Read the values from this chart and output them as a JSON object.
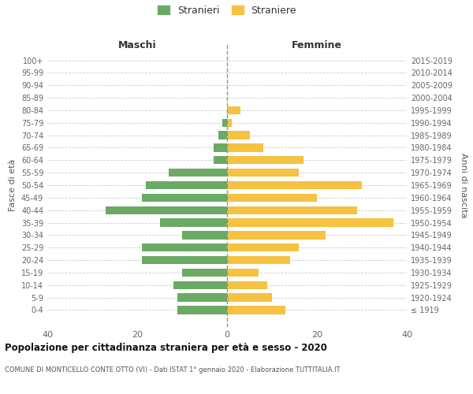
{
  "age_groups": [
    "100+",
    "95-99",
    "90-94",
    "85-89",
    "80-84",
    "75-79",
    "70-74",
    "65-69",
    "60-64",
    "55-59",
    "50-54",
    "45-49",
    "40-44",
    "35-39",
    "30-34",
    "25-29",
    "20-24",
    "15-19",
    "10-14",
    "5-9",
    "0-4"
  ],
  "birth_years": [
    "≤ 1919",
    "1920-1924",
    "1925-1929",
    "1930-1934",
    "1935-1939",
    "1940-1944",
    "1945-1949",
    "1950-1954",
    "1955-1959",
    "1960-1964",
    "1965-1969",
    "1970-1974",
    "1975-1979",
    "1980-1984",
    "1985-1989",
    "1990-1994",
    "1995-1999",
    "2000-2004",
    "2005-2009",
    "2010-2014",
    "2015-2019"
  ],
  "maschi": [
    0,
    0,
    0,
    0,
    0,
    1,
    2,
    3,
    3,
    13,
    18,
    19,
    27,
    15,
    10,
    19,
    19,
    10,
    12,
    11,
    11
  ],
  "femmine": [
    0,
    0,
    0,
    0,
    3,
    1,
    5,
    8,
    17,
    16,
    30,
    20,
    29,
    37,
    22,
    16,
    14,
    7,
    9,
    10,
    13
  ],
  "male_color": "#6aaa64",
  "female_color": "#f5c242",
  "title": "Popolazione per cittadinanza straniera per età e sesso - 2020",
  "subtitle": "COMUNE DI MONTICELLO CONTE OTTO (VI) - Dati ISTAT 1° gennaio 2020 - Elaborazione TUTTITALIA.IT",
  "xlabel_left": "Maschi",
  "xlabel_right": "Femmine",
  "ylabel_left": "Fasce di età",
  "ylabel_right": "Anni di nascita",
  "legend_male": "Stranieri",
  "legend_female": "Straniere",
  "xlim": 40,
  "background_color": "#ffffff",
  "grid_color": "#cccccc"
}
